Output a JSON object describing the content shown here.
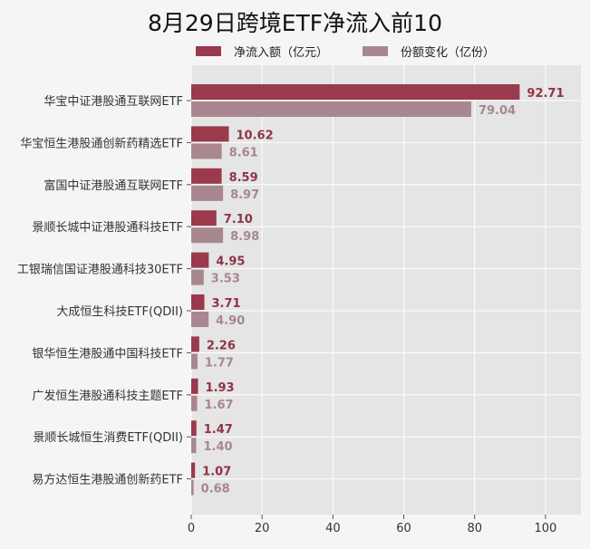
{
  "chart_data": {
    "type": "bar",
    "orientation": "horizontal",
    "title": "8月29日跨境ETF净流入前10",
    "categories": [
      "华宝中证港股通互联网ETF",
      "华宝恒生港股通创新药精选ETF",
      "富国中证港股通互联网ETF",
      "景顺长城中证港股通科技ETF",
      "工银瑞信国证港股通科技30ETF",
      "大成恒生科技ETF(QDII)",
      "银华恒生港股通中国科技ETF",
      "广发恒生港股通科技主题ETF",
      "景顺长城恒生消费ETF(QDII)",
      "易方达恒生港股通创新药ETF"
    ],
    "series": [
      {
        "name": "净流入额（亿元）",
        "color": "#9a3a4c",
        "label_color": "#8f3346",
        "values": [
          92.71,
          10.62,
          8.59,
          7.1,
          4.95,
          3.71,
          2.26,
          1.93,
          1.47,
          1.07
        ],
        "labels": [
          "92.71",
          "10.62",
          "8.59",
          "7.10",
          "4.95",
          "3.71",
          "2.26",
          "1.93",
          "1.47",
          "1.07"
        ]
      },
      {
        "name": "份额变化（亿份）",
        "color": "#a9878f",
        "label_color": "#a88690",
        "values": [
          79.04,
          8.61,
          8.97,
          8.98,
          3.53,
          4.9,
          1.77,
          1.67,
          1.4,
          0.68
        ],
        "labels": [
          "79.04",
          "8.61",
          "8.97",
          "8.98",
          "3.53",
          "4.90",
          "1.77",
          "1.67",
          "1.40",
          "0.68"
        ]
      }
    ],
    "xlabel": "",
    "ylabel": "",
    "xlim": [
      0,
      110
    ],
    "xticks": [
      0,
      20,
      40,
      60,
      80,
      100
    ],
    "xtick_labels": [
      "0",
      "20",
      "40",
      "60",
      "80",
      "100"
    ],
    "grid": true,
    "legend_position": "top"
  }
}
